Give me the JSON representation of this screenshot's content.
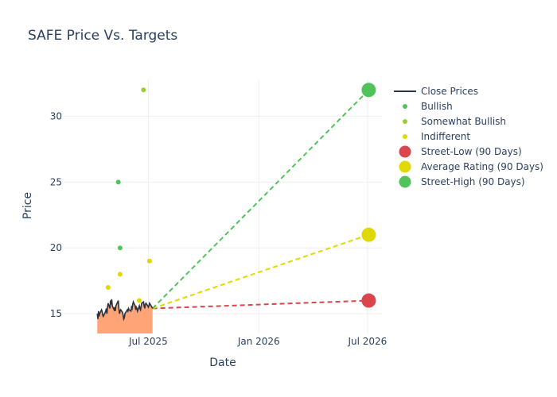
{
  "chart_data": {
    "type": "line",
    "title": "SAFE Price Vs. Targets",
    "xlabel": "Date",
    "ylabel": "Price",
    "xlim": [
      "2025-02-10",
      "2026-07-25"
    ],
    "ylim": [
      13.5,
      32.8
    ],
    "grid": true,
    "legend_position": "right",
    "x_ticks": [
      {
        "date": "2025-07-01",
        "label": "Jul 2025"
      },
      {
        "date": "2026-01-01",
        "label": "Jan 2026"
      },
      {
        "date": "2026-07-01",
        "label": "Jul 2026"
      }
    ],
    "y_ticks": [
      15,
      20,
      25,
      30
    ],
    "close_prices": {
      "name": "Close Prices",
      "color": "#2a3340",
      "fill_color": "#ffa477",
      "points": [
        [
          "2025-04-07",
          15.0
        ],
        [
          "2025-04-08",
          14.6
        ],
        [
          "2025-04-09",
          15.2
        ],
        [
          "2025-04-10",
          14.8
        ],
        [
          "2025-04-11",
          15.0
        ],
        [
          "2025-04-14",
          15.3
        ],
        [
          "2025-04-15",
          15.2
        ],
        [
          "2025-04-16",
          14.9
        ],
        [
          "2025-04-17",
          14.8
        ],
        [
          "2025-04-21",
          15.2
        ],
        [
          "2025-04-22",
          15.4
        ],
        [
          "2025-04-23",
          15.0
        ],
        [
          "2025-04-24",
          15.5
        ],
        [
          "2025-04-25",
          15.8
        ],
        [
          "2025-04-28",
          15.4
        ],
        [
          "2025-04-29",
          16.0
        ],
        [
          "2025-04-30",
          15.7
        ],
        [
          "2025-05-01",
          16.1
        ],
        [
          "2025-05-02",
          15.6
        ],
        [
          "2025-05-05",
          15.3
        ],
        [
          "2025-05-06",
          15.5
        ],
        [
          "2025-05-07",
          15.2
        ],
        [
          "2025-05-08",
          15.6
        ],
        [
          "2025-05-09",
          15.7
        ],
        [
          "2025-05-12",
          16.0
        ],
        [
          "2025-05-13",
          15.4
        ],
        [
          "2025-05-14",
          15.0
        ],
        [
          "2025-05-15",
          15.2
        ],
        [
          "2025-05-16",
          15.3
        ],
        [
          "2025-05-19",
          15.1
        ],
        [
          "2025-05-20",
          14.9
        ],
        [
          "2025-05-21",
          14.6
        ],
        [
          "2025-05-22",
          14.7
        ],
        [
          "2025-05-23",
          15.0
        ],
        [
          "2025-05-27",
          15.3
        ],
        [
          "2025-05-28",
          15.2
        ],
        [
          "2025-05-29",
          15.4
        ],
        [
          "2025-05-30",
          15.3
        ],
        [
          "2025-06-02",
          15.2
        ],
        [
          "2025-06-03",
          15.5
        ],
        [
          "2025-06-04",
          15.4
        ],
        [
          "2025-06-05",
          15.7
        ],
        [
          "2025-06-06",
          15.9
        ],
        [
          "2025-06-09",
          15.6
        ],
        [
          "2025-06-10",
          15.3
        ],
        [
          "2025-06-11",
          15.5
        ],
        [
          "2025-06-12",
          15.4
        ],
        [
          "2025-06-13",
          15.2
        ],
        [
          "2025-06-16",
          15.6
        ],
        [
          "2025-06-17",
          15.4
        ],
        [
          "2025-06-18",
          15.3
        ],
        [
          "2025-06-20",
          15.8
        ],
        [
          "2025-06-23",
          15.9
        ],
        [
          "2025-06-24",
          15.6
        ],
        [
          "2025-06-25",
          15.4
        ],
        [
          "2025-06-26",
          15.7
        ],
        [
          "2025-06-27",
          15.8
        ],
        [
          "2025-06-30",
          15.6
        ],
        [
          "2025-07-01",
          15.5
        ],
        [
          "2025-07-02",
          15.6
        ],
        [
          "2025-07-03",
          15.8
        ],
        [
          "2025-07-07",
          15.5
        ],
        [
          "2025-07-08",
          15.4
        ]
      ]
    },
    "analyst_ratings": [
      {
        "name": "Bullish",
        "color": "#50c35a",
        "points": [
          [
            "2025-05-12",
            25
          ],
          [
            "2025-05-15",
            20
          ]
        ]
      },
      {
        "name": "Somewhat Bullish",
        "color": "#9acd32",
        "points": [
          [
            "2025-06-23",
            32
          ]
        ]
      },
      {
        "name": "Indifferent",
        "color": "#e0d900",
        "points": [
          [
            "2025-04-25",
            17
          ],
          [
            "2025-05-15",
            18
          ],
          [
            "2025-06-16",
            16
          ],
          [
            "2025-07-03",
            19
          ]
        ]
      }
    ],
    "targets": [
      {
        "name": "Street-Low (90 Days)",
        "color": "#d9464b",
        "start": [
          "2025-07-08",
          15.4
        ],
        "end": [
          "2026-07-03",
          16
        ]
      },
      {
        "name": "Average Rating (90 Days)",
        "color": "#e0d900",
        "start": [
          "2025-07-08",
          15.4
        ],
        "end": [
          "2026-07-03",
          21
        ]
      },
      {
        "name": "Street-High (90 Days)",
        "color": "#50c35a",
        "start": [
          "2025-07-08",
          15.4
        ],
        "end": [
          "2026-07-03",
          32
        ]
      }
    ]
  }
}
